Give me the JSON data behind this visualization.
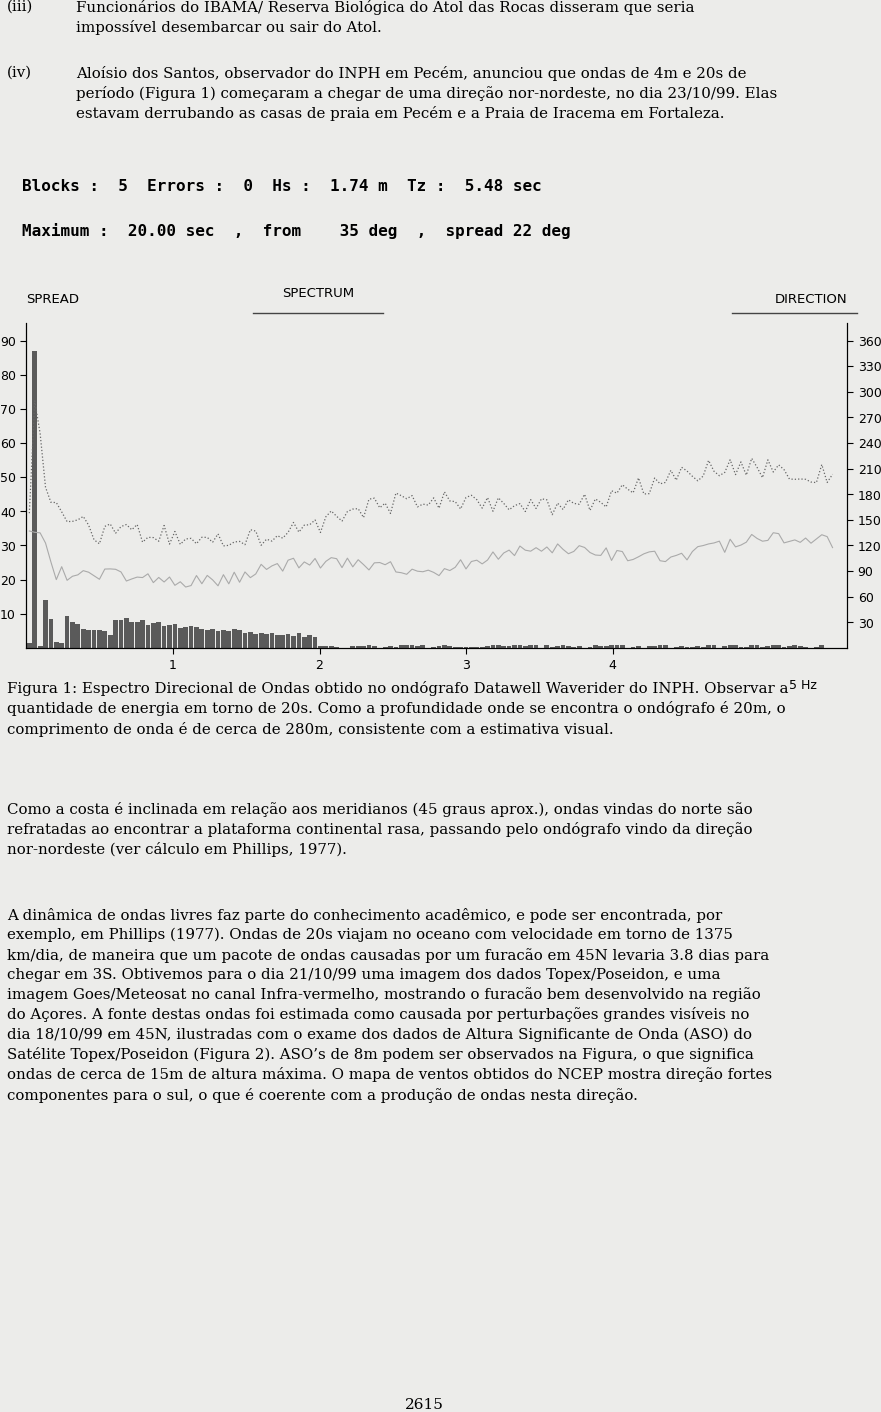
{
  "background_color": "#ececea",
  "page_width": 9.6,
  "page_height": 14.75,
  "header_line1": "Blocks :  5  Errors :  0  Hs :  1.74 m  Tz :  5.48 sec",
  "header_line2": "Maximum :  20.00 sec  ,  from    35 deg  ,  spread 22 deg",
  "header_fontsize": 11.5,
  "chart_label_spread": "SPREAD",
  "chart_label_spectrum": "SPECTRUM",
  "chart_label_direction": "DIRECTION",
  "left_yticks": [
    10,
    20,
    30,
    40,
    50,
    60,
    70,
    80,
    90
  ],
  "right_yticks": [
    30,
    60,
    90,
    120,
    150,
    180,
    210,
    240,
    270,
    300,
    330,
    360
  ],
  "xticks": [
    1,
    2,
    3,
    4
  ],
  "xlim": [
    0.0,
    5.6
  ],
  "ylim_left": [
    0,
    95
  ],
  "ylim_right": [
    0,
    380
  ],
  "page_number": "2615",
  "chart_color_bars": "#4a4a4a",
  "chart_color_dotted": "#666666",
  "chart_color_solid": "#aaaaaa"
}
